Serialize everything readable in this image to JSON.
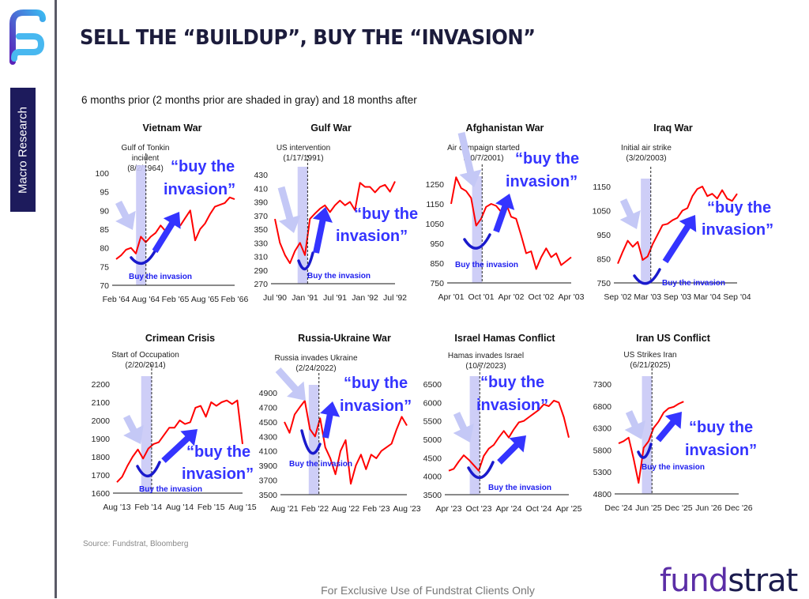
{
  "header": {
    "title": "SELL THE “BUILDUP”, BUY THE “INVASION”",
    "subtitle": "6 months prior (2 months prior are shaded in gray) and 18 months after"
  },
  "sidebar": {
    "section_label": "Macro Research"
  },
  "footer": {
    "source": "Source: Fundstrat, Bloomberg",
    "disclaimer": "For Exclusive Use of Fundstrat Clients Only",
    "logo_text_a": "fund",
    "logo_text_b": "strat"
  },
  "colors": {
    "series": "#ff0000",
    "shade": "#c9c9f6",
    "accent_blue": "#3434ff",
    "light_arrow": "#c4c8f6",
    "navy": "#1d1b5c",
    "brand_purple": "#5b2ea6"
  },
  "annotation_text": {
    "big": [
      "“buy the",
      "invasion”"
    ],
    "small": "Buy the invasion"
  },
  "chart_data": [
    {
      "type": "line",
      "title": "Vietnam War",
      "event_label": [
        "Gulf of Tonkin",
        "incident",
        "(8/2/1964)"
      ],
      "event_date": "1964-08-02",
      "shade_months_prior": 2,
      "xlim": [
        "1964-02",
        "1966-02"
      ],
      "xticks": [
        "Feb '64",
        "Aug '64",
        "Feb '65",
        "Aug '65",
        "Feb '66"
      ],
      "ylim": [
        70,
        100
      ],
      "yticks": [
        70,
        75,
        80,
        85,
        90,
        95,
        100
      ],
      "series": [
        {
          "values": [
            [
              "1964-02",
              77
            ],
            [
              "1964-03",
              78
            ],
            [
              "1964-04",
              79.5
            ],
            [
              "1964-05",
              80
            ],
            [
              "1964-06",
              78.5
            ],
            [
              "1964-07",
              83
            ],
            [
              "1964-08",
              81.5
            ],
            [
              "1964-09",
              83
            ],
            [
              "1964-10",
              84
            ],
            [
              "1964-11",
              86
            ],
            [
              "1964-12",
              84.5
            ],
            [
              "1965-01",
              87
            ],
            [
              "1965-02",
              87
            ],
            [
              "1965-03",
              86
            ],
            [
              "1965-04",
              88
            ],
            [
              "1965-05",
              90
            ],
            [
              "1965-06",
              82
            ],
            [
              "1965-07",
              85
            ],
            [
              "1965-08",
              86.5
            ],
            [
              "1965-09",
              89
            ],
            [
              "1965-10",
              91
            ],
            [
              "1965-11",
              91.5
            ],
            [
              "1965-12",
              92
            ],
            [
              "1966-01",
              93.5
            ],
            [
              "1966-02",
              93
            ]
          ]
        }
      ]
    },
    {
      "type": "line",
      "title": "Gulf War",
      "event_label": [
        "US intervention",
        "(1/17/1991)"
      ],
      "event_date": "1991-01-17",
      "shade_months_prior": 2,
      "xlim": [
        "1990-07",
        "1992-07"
      ],
      "xticks": [
        "Jul '90",
        "Jan '91",
        "Jul '91",
        "Jan '92",
        "Jul '92"
      ],
      "ylim": [
        270,
        430
      ],
      "yticks": [
        270,
        290,
        310,
        330,
        350,
        370,
        390,
        410,
        430
      ],
      "series": [
        {
          "values": [
            [
              "1990-07",
              365
            ],
            [
              "1990-08",
              330
            ],
            [
              "1990-09",
              312
            ],
            [
              "1990-10",
              300
            ],
            [
              "1990-11",
              318
            ],
            [
              "1990-12",
              330
            ],
            [
              "1991-01",
              312
            ],
            [
              "1991-02",
              365
            ],
            [
              "1991-03",
              373
            ],
            [
              "1991-04",
              380
            ],
            [
              "1991-05",
              385
            ],
            [
              "1991-06",
              375
            ],
            [
              "1991-07",
              385
            ],
            [
              "1991-08",
              392
            ],
            [
              "1991-09",
              385
            ],
            [
              "1991-10",
              390
            ],
            [
              "1991-11",
              378
            ],
            [
              "1991-12",
              418
            ],
            [
              "1992-01",
              412
            ],
            [
              "1992-02",
              412
            ],
            [
              "1992-03",
              404
            ],
            [
              "1992-04",
              412
            ],
            [
              "1992-05",
              415
            ],
            [
              "1992-06",
              405
            ],
            [
              "1992-07",
              420
            ]
          ]
        }
      ]
    },
    {
      "type": "line",
      "title": "Afghanistan War",
      "event_label": [
        "Air campaign started",
        "(10/7/2001)"
      ],
      "event_date": "2001-10-07",
      "shade_months_prior": 2,
      "xlim": [
        "2001-04",
        "2003-04"
      ],
      "xticks": [
        "Apr '01",
        "Oct '01",
        "Apr '02",
        "Oct '02",
        "Apr '03"
      ],
      "ylim": [
        750,
        1250
      ],
      "yticks": [
        750,
        850,
        950,
        1050,
        1150,
        1250
      ],
      "series": [
        {
          "values": [
            [
              "2001-04",
              1150
            ],
            [
              "2001-05",
              1285
            ],
            [
              "2001-06",
              1230
            ],
            [
              "2001-07",
              1215
            ],
            [
              "2001-08",
              1180
            ],
            [
              "2001-09",
              1040
            ],
            [
              "2001-10",
              1075
            ],
            [
              "2001-11",
              1135
            ],
            [
              "2001-12",
              1150
            ],
            [
              "2002-01",
              1140
            ],
            [
              "2002-02",
              1110
            ],
            [
              "2002-03",
              1150
            ],
            [
              "2002-04",
              1085
            ],
            [
              "2002-05",
              1075
            ],
            [
              "2002-06",
              990
            ],
            [
              "2002-07",
              900
            ],
            [
              "2002-08",
              910
            ],
            [
              "2002-09",
              820
            ],
            [
              "2002-10",
              880
            ],
            [
              "2002-11",
              925
            ],
            [
              "2002-12",
              880
            ],
            [
              "2003-01",
              900
            ],
            [
              "2003-02",
              840
            ],
            [
              "2003-03",
              860
            ],
            [
              "2003-04",
              880
            ]
          ]
        }
      ]
    },
    {
      "type": "line",
      "title": "Iraq War",
      "event_label": [
        "Initial air strike",
        "(3/20/2003)"
      ],
      "event_date": "2003-03-20",
      "shade_months_prior": 2,
      "xlim": [
        "2002-09",
        "2004-09"
      ],
      "xticks": [
        "Sep '02",
        "Mar '03",
        "Sep '03",
        "Mar '04",
        "Sep '04"
      ],
      "ylim": [
        750,
        1150
      ],
      "yticks": [
        750,
        850,
        950,
        1050,
        1150
      ],
      "series": [
        {
          "values": [
            [
              "2002-09",
              830
            ],
            [
              "2002-10",
              880
            ],
            [
              "2002-11",
              925
            ],
            [
              "2002-12",
              900
            ],
            [
              "2003-01",
              920
            ],
            [
              "2003-02",
              845
            ],
            [
              "2003-03",
              860
            ],
            [
              "2003-04",
              910
            ],
            [
              "2003-05",
              950
            ],
            [
              "2003-06",
              990
            ],
            [
              "2003-07",
              995
            ],
            [
              "2003-08",
              1010
            ],
            [
              "2003-09",
              1020
            ],
            [
              "2003-10",
              1050
            ],
            [
              "2003-11",
              1060
            ],
            [
              "2003-12",
              1110
            ],
            [
              "2004-01",
              1140
            ],
            [
              "2004-02",
              1150
            ],
            [
              "2004-03",
              1110
            ],
            [
              "2004-04",
              1120
            ],
            [
              "2004-05",
              1100
            ],
            [
              "2004-06",
              1135
            ],
            [
              "2004-07",
              1100
            ],
            [
              "2004-08",
              1090
            ],
            [
              "2004-09",
              1120
            ]
          ]
        }
      ]
    },
    {
      "type": "line",
      "title": "Crimean Crisis",
      "event_label": [
        "Start of Occupation",
        "(2/20/2014)"
      ],
      "event_date": "2014-02-20",
      "shade_months_prior": 2,
      "xlim": [
        "2013-08",
        "2015-08"
      ],
      "xticks": [
        "Aug '13",
        "Feb '14",
        "Aug '14",
        "Feb '15",
        "Aug '15"
      ],
      "ylim": [
        1600,
        2200
      ],
      "yticks": [
        1600,
        1700,
        1800,
        1900,
        2000,
        2100,
        2200
      ],
      "series": [
        {
          "values": [
            [
              "2013-08",
              1660
            ],
            [
              "2013-09",
              1690
            ],
            [
              "2013-10",
              1750
            ],
            [
              "2013-11",
              1800
            ],
            [
              "2013-12",
              1840
            ],
            [
              "2014-01",
              1790
            ],
            [
              "2014-02",
              1845
            ],
            [
              "2014-03",
              1870
            ],
            [
              "2014-04",
              1880
            ],
            [
              "2014-05",
              1920
            ],
            [
              "2014-06",
              1960
            ],
            [
              "2014-07",
              1960
            ],
            [
              "2014-08",
              2000
            ],
            [
              "2014-09",
              1980
            ],
            [
              "2014-10",
              1990
            ],
            [
              "2014-11",
              2070
            ],
            [
              "2014-12",
              2080
            ],
            [
              "2015-01",
              2020
            ],
            [
              "2015-02",
              2100
            ],
            [
              "2015-03",
              2080
            ],
            [
              "2015-04",
              2100
            ],
            [
              "2015-05",
              2110
            ],
            [
              "2015-06",
              2090
            ],
            [
              "2015-07",
              2110
            ],
            [
              "2015-08",
              1870
            ]
          ]
        }
      ]
    },
    {
      "type": "line",
      "title": "Russia-Ukraine War",
      "event_label": [
        "Russia invades Ukraine",
        "(2/24/2022)"
      ],
      "event_date": "2022-02-24",
      "shade_months_prior": 2,
      "xlim": [
        "2021-08",
        "2023-08"
      ],
      "xticks": [
        "Aug '21",
        "Feb '22",
        "Aug '22",
        "Feb '23",
        "Aug '23"
      ],
      "ylim": [
        3500,
        4900
      ],
      "yticks": [
        3500,
        3700,
        3900,
        4100,
        4300,
        4500,
        4700,
        4900
      ],
      "series": [
        {
          "values": [
            [
              "2021-08",
              4500
            ],
            [
              "2021-09",
              4350
            ],
            [
              "2021-10",
              4600
            ],
            [
              "2021-11",
              4700
            ],
            [
              "2021-12",
              4790
            ],
            [
              "2022-01",
              4400
            ],
            [
              "2022-02",
              4300
            ],
            [
              "2022-03",
              4550
            ],
            [
              "2022-04",
              4150
            ],
            [
              "2022-05",
              4000
            ],
            [
              "2022-06",
              3780
            ],
            [
              "2022-07",
              4100
            ],
            [
              "2022-08",
              4250
            ],
            [
              "2022-09",
              3650
            ],
            [
              "2022-10",
              3900
            ],
            [
              "2022-11",
              4050
            ],
            [
              "2022-12",
              3850
            ],
            [
              "2023-01",
              4050
            ],
            [
              "2023-02",
              4000
            ],
            [
              "2023-03",
              4100
            ],
            [
              "2023-04",
              4150
            ],
            [
              "2023-05",
              4200
            ],
            [
              "2023-06",
              4400
            ],
            [
              "2023-07",
              4570
            ],
            [
              "2023-08",
              4450
            ]
          ]
        }
      ]
    },
    {
      "type": "line",
      "title": "Israel Hamas Conflict",
      "event_label": [
        "Hamas invades Israel",
        "(10/7/2023)"
      ],
      "event_date": "2023-10-07",
      "shade_months_prior": 2,
      "xlim": [
        "2023-04",
        "2025-04"
      ],
      "xticks": [
        "Apr '23",
        "Oct '23",
        "Apr '24",
        "Oct '24",
        "Apr '25"
      ],
      "ylim": [
        3500,
        6500
      ],
      "yticks": [
        3500,
        4000,
        4500,
        5000,
        5500,
        6000,
        6500
      ],
      "series": [
        {
          "values": [
            [
              "2023-04",
              4150
            ],
            [
              "2023-05",
              4200
            ],
            [
              "2023-06",
              4400
            ],
            [
              "2023-07",
              4570
            ],
            [
              "2023-08",
              4450
            ],
            [
              "2023-09",
              4300
            ],
            [
              "2023-10",
              4150
            ],
            [
              "2023-11",
              4550
            ],
            [
              "2023-12",
              4750
            ],
            [
              "2024-01",
              4850
            ],
            [
              "2024-02",
              5050
            ],
            [
              "2024-03",
              5230
            ],
            [
              "2024-04",
              5050
            ],
            [
              "2024-05",
              5270
            ],
            [
              "2024-06",
              5460
            ],
            [
              "2024-07",
              5500
            ],
            [
              "2024-08",
              5600
            ],
            [
              "2024-09",
              5700
            ],
            [
              "2024-10",
              5800
            ],
            [
              "2024-11",
              5950
            ],
            [
              "2024-12",
              5900
            ],
            [
              "2025-01",
              6050
            ],
            [
              "2025-02",
              6000
            ],
            [
              "2025-03",
              5600
            ],
            [
              "2025-04",
              5050
            ]
          ]
        }
      ]
    },
    {
      "type": "line",
      "title": "Iran US Conflict",
      "event_label": [
        "US Strikes Iran",
        "(6/21/2025)"
      ],
      "event_date": "2025-06-21",
      "shade_months_prior": 2,
      "xlim": [
        "2024-12",
        "2026-12"
      ],
      "xticks": [
        "Dec '24",
        "Jun '25",
        "Dec '25",
        "Jun '26",
        "Dec '26"
      ],
      "ylim": [
        4800,
        7300
      ],
      "yticks": [
        4800,
        5300,
        5800,
        6300,
        6800,
        7300
      ],
      "series": [
        {
          "values": [
            [
              "2024-12",
              5950
            ],
            [
              "2025-01",
              6000
            ],
            [
              "2025-02",
              6080
            ],
            [
              "2025-03",
              5600
            ],
            [
              "2025-04",
              5050
            ],
            [
              "2025-05",
              5850
            ],
            [
              "2025-06",
              6000
            ],
            [
              "2025-07",
              6300
            ],
            [
              "2025-08",
              6450
            ],
            [
              "2025-09",
              6650
            ],
            [
              "2025-10",
              6750
            ],
            [
              "2025-11",
              6780
            ],
            [
              "2025-12",
              6850
            ],
            [
              "2026-01",
              6900
            ]
          ]
        }
      ]
    }
  ]
}
